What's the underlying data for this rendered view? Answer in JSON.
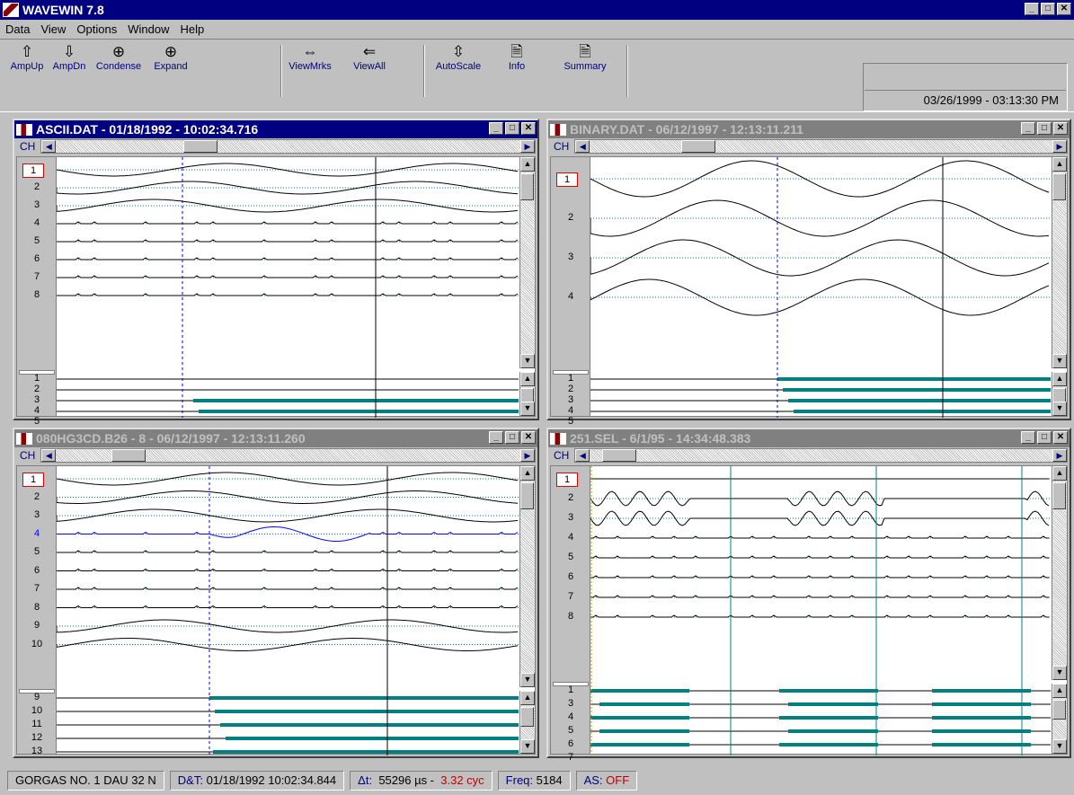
{
  "app": {
    "title": "WAVEWIN 7.8"
  },
  "menu": [
    "Data",
    "View",
    "Options",
    "Window",
    "Help"
  ],
  "toolbar": [
    {
      "label": "AmpUp",
      "icon": "arrow-up-icon"
    },
    {
      "label": "AmpDn",
      "icon": "arrow-down-icon"
    },
    {
      "label": "Condense",
      "icon": "zoom-out-icon"
    },
    {
      "label": "Expand",
      "icon": "zoom-in-icon"
    },
    {
      "label": "ViewMrks",
      "icon": "view-markers-icon"
    },
    {
      "label": "ViewAll",
      "icon": "view-all-icon"
    },
    {
      "label": "AutoScale",
      "icon": "autoscale-icon"
    },
    {
      "label": "Info",
      "icon": "info-document-icon"
    },
    {
      "label": "Summary",
      "icon": "summary-document-icon"
    }
  ],
  "datetime": "03/26/1999 - 03:13:30 PM",
  "windows": [
    {
      "title": "ASCII.DAT - 01/18/1992 - 10:02:34.716",
      "active": true,
      "ch_label": "CH",
      "analog_channels": [
        "1",
        "2",
        "3",
        "4",
        "5",
        "6",
        "7",
        "8"
      ],
      "digital_channels": [
        "1",
        "2",
        "3",
        "4",
        "5"
      ]
    },
    {
      "title": "BINARY.DAT - 06/12/1997 - 12:13:11.211",
      "active": false,
      "ch_label": "CH",
      "analog_channels": [
        "1",
        "2",
        "3",
        "4"
      ],
      "digital_channels": [
        "1",
        "2",
        "3",
        "4",
        "5"
      ]
    },
    {
      "title": "080HG3CD.B26 -   8 - 06/12/1997 - 12:13:11.260",
      "active": false,
      "ch_label": "CH",
      "analog_channels": [
        "1",
        "2",
        "3",
        "4",
        "5",
        "6",
        "7",
        "8",
        "9",
        "10"
      ],
      "digital_channels": [
        "9",
        "10",
        "11",
        "12",
        "13"
      ]
    },
    {
      "title": "251.SEL - 6/1/95 - 14:34:48.383",
      "active": false,
      "ch_label": "CH",
      "analog_channels": [
        "1",
        "2",
        "3",
        "4",
        "5",
        "6",
        "7",
        "8"
      ],
      "digital_channels": [
        "1",
        "3",
        "4",
        "5",
        "6",
        "7"
      ]
    }
  ],
  "status": {
    "station": "GORGAS   NO. 1 DAU 32  N",
    "dt_label": "D&T:",
    "dt_value": "01/18/1992 10:02:34.844",
    "delta_label": "Δt:",
    "delta_value": "55296 µs -",
    "cycles": "3.32 cyc",
    "freq_label": "Freq:",
    "freq_value": "5184",
    "as_label": "AS:",
    "as_value": "OFF"
  },
  "colors": {
    "titlebar": "#000080",
    "digital": "#008080",
    "cursor": "#0000ff",
    "ref": "#008080"
  }
}
